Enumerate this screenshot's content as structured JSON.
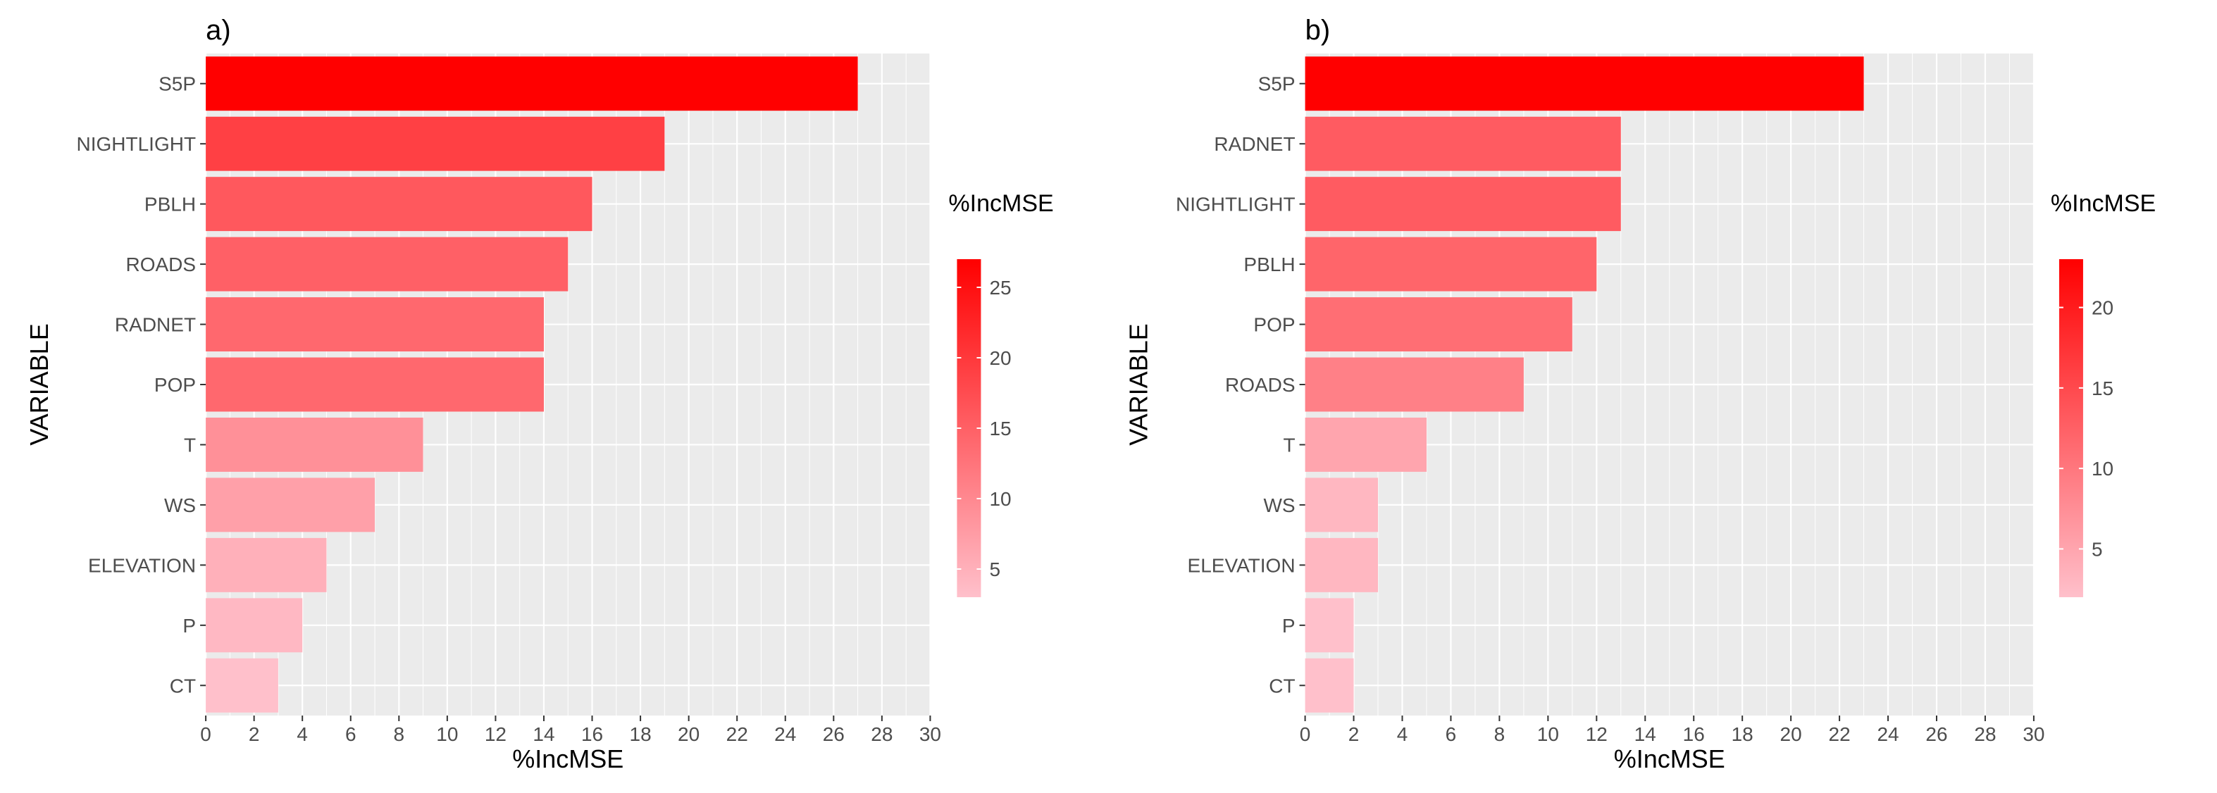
{
  "chart_data": [
    {
      "type": "bar",
      "orientation": "horizontal",
      "panel_label": "a)",
      "categories": [
        "S5P",
        "NIGHTLIGHT",
        "PBLH",
        "ROADS",
        "RADNET",
        "POP",
        "T",
        "WS",
        "ELEVATION",
        "P",
        "CT"
      ],
      "values": [
        27,
        19,
        16,
        15,
        14,
        14,
        9,
        7,
        5,
        4,
        3
      ],
      "xlabel": "%IncMSE",
      "ylabel": "VARIABLE",
      "xlim": [
        0,
        30
      ],
      "xticks": [
        0,
        2,
        4,
        6,
        8,
        10,
        12,
        14,
        16,
        18,
        20,
        22,
        24,
        26,
        28,
        30
      ],
      "grid": true,
      "legend": {
        "title": "%IncMSE",
        "placement": "right",
        "range": [
          3,
          27
        ],
        "ticks": [
          5,
          10,
          15,
          20,
          25
        ],
        "low_color": "#ffc0cb",
        "high_color": "#ff0000"
      }
    },
    {
      "type": "bar",
      "orientation": "horizontal",
      "panel_label": "b)",
      "categories": [
        "S5P",
        "RADNET",
        "NIGHTLIGHT",
        "PBLH",
        "POP",
        "ROADS",
        "T",
        "WS",
        "ELEVATION",
        "P",
        "CT"
      ],
      "values": [
        23,
        13,
        13,
        12,
        11,
        9,
        5,
        3,
        3,
        2,
        2
      ],
      "xlabel": "%IncMSE",
      "ylabel": "VARIABLE",
      "xlim": [
        0,
        30
      ],
      "xticks": [
        0,
        2,
        4,
        6,
        8,
        10,
        12,
        14,
        16,
        18,
        20,
        22,
        24,
        26,
        28,
        30
      ],
      "grid": true,
      "legend": {
        "title": "%IncMSE",
        "placement": "right",
        "range": [
          2,
          23
        ],
        "ticks": [
          5,
          10,
          15,
          20
        ],
        "low_color": "#ffc0cb",
        "high_color": "#ff0000"
      }
    }
  ],
  "colors": {
    "panel_bg": "#ebebeb",
    "grid": "#ffffff",
    "text": "#4d4d4d",
    "title": "#000000"
  }
}
